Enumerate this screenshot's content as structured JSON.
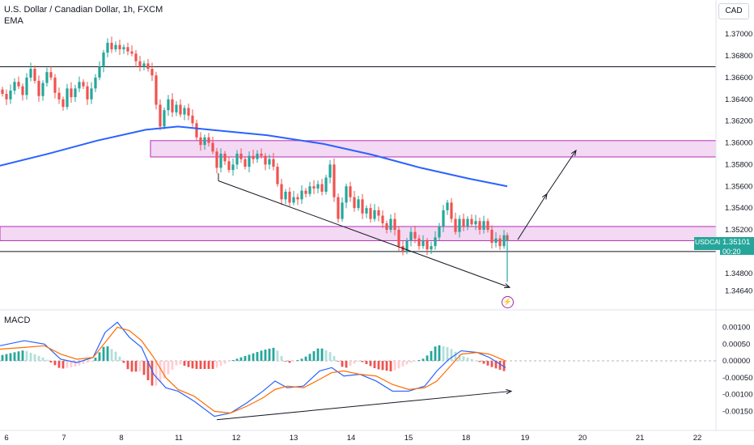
{
  "header": {
    "symbol_title": "U.S. Dollar / Canadian Dollar, 1h, FXCM",
    "indicator": "EMA",
    "currency_button": "CAD"
  },
  "price_tag": {
    "symbol": "USDCAD",
    "price": "1.35101",
    "countdown": "00:20"
  },
  "colors": {
    "up": "#26a69a",
    "down": "#ef5350",
    "ema": "#2962ff",
    "zone_fill": "#f3d9f3",
    "zone_border": "#b42fb4",
    "macd_line": "#2962ff",
    "signal_line": "#ff6d00"
  },
  "icons": {
    "event_marker": "lightning-icon"
  },
  "chart_data": [
    {
      "type": "candlestick",
      "title": "U.S. Dollar / Canadian Dollar, 1h, FXCM",
      "x_tick_labels": [
        "6",
        "7",
        "8",
        "11",
        "12",
        "13",
        "14",
        "15",
        "18",
        "19",
        "20",
        "21",
        "22"
      ],
      "y_ticks": [
        "1.37000",
        "1.36800",
        "1.36600",
        "1.36400",
        "1.36200",
        "1.36000",
        "1.35800",
        "1.35600",
        "1.35400",
        "1.35200",
        "1.35000",
        "1.34800",
        "1.34640"
      ],
      "ylim": [
        1.3456,
        1.3712
      ],
      "last_price": 1.35101,
      "resistance_line": 1.367,
      "support_line": 1.35,
      "zones": [
        {
          "from": 1.3587,
          "to": 1.3602
        },
        {
          "from": 1.351,
          "to": 1.3523
        }
      ],
      "ema_path": [
        [
          0,
          1.3579
        ],
        [
          60,
          1.359
        ],
        [
          120,
          1.3602
        ],
        [
          180,
          1.3612
        ],
        [
          220,
          1.3615
        ],
        [
          260,
          1.3612
        ],
        [
          330,
          1.3607
        ],
        [
          400,
          1.3599
        ],
        [
          460,
          1.3589
        ],
        [
          520,
          1.3577
        ],
        [
          580,
          1.3567
        ],
        [
          627,
          1.356
        ]
      ],
      "trendline": [
        [
          270,
          1.3565
        ],
        [
          630,
          1.3467
        ]
      ],
      "projection": [
        [
          640,
          1.3511
        ],
        [
          676,
          1.3553
        ],
        [
          712,
          1.3593
        ]
      ],
      "close_path": [
        [
          3,
          1.3645
        ],
        [
          8,
          1.364
        ],
        [
          13,
          1.3648
        ],
        [
          18,
          1.3656
        ],
        [
          23,
          1.3652
        ],
        [
          28,
          1.3644
        ],
        [
          33,
          1.366
        ],
        [
          38,
          1.3668
        ],
        [
          43,
          1.3657
        ],
        [
          48,
          1.3643
        ],
        [
          53,
          1.3655
        ],
        [
          58,
          1.3665
        ],
        [
          63,
          1.366
        ],
        [
          68,
          1.3646
        ],
        [
          73,
          1.364
        ],
        [
          78,
          1.3633
        ],
        [
          83,
          1.365
        ],
        [
          88,
          1.3642
        ],
        [
          93,
          1.365
        ],
        [
          98,
          1.3656
        ],
        [
          103,
          1.3652
        ],
        [
          108,
          1.364
        ],
        [
          113,
          1.365
        ],
        [
          118,
          1.366
        ],
        [
          123,
          1.367
        ],
        [
          128,
          1.3683
        ],
        [
          133,
          1.3692
        ],
        [
          138,
          1.3686
        ],
        [
          143,
          1.369
        ],
        [
          148,
          1.3686
        ],
        [
          153,
          1.3688
        ],
        [
          158,
          1.3684
        ],
        [
          163,
          1.3682
        ],
        [
          168,
          1.3675
        ],
        [
          173,
          1.367
        ],
        [
          178,
          1.3673
        ],
        [
          183,
          1.3668
        ],
        [
          188,
          1.3662
        ],
        [
          193,
          1.3635
        ],
        [
          198,
          1.3615
        ],
        [
          203,
          1.363
        ],
        [
          208,
          1.364
        ],
        [
          213,
          1.3628
        ],
        [
          218,
          1.3635
        ],
        [
          223,
          1.3626
        ],
        [
          228,
          1.3632
        ],
        [
          233,
          1.3625
        ],
        [
          238,
          1.3618
        ],
        [
          243,
          1.3605
        ],
        [
          248,
          1.3598
        ],
        [
          253,
          1.3605
        ],
        [
          258,
          1.36
        ],
        [
          263,
          1.3592
        ],
        [
          268,
          1.3577
        ],
        [
          273,
          1.359
        ],
        [
          278,
          1.3583
        ],
        [
          283,
          1.3575
        ],
        [
          288,
          1.358
        ],
        [
          293,
          1.359
        ],
        [
          298,
          1.3585
        ],
        [
          303,
          1.3578
        ],
        [
          308,
          1.3588
        ],
        [
          313,
          1.3585
        ],
        [
          318,
          1.359
        ],
        [
          323,
          1.3588
        ],
        [
          328,
          1.358
        ],
        [
          333,
          1.3585
        ],
        [
          338,
          1.3578
        ],
        [
          343,
          1.3562
        ],
        [
          348,
          1.3548
        ],
        [
          353,
          1.3555
        ],
        [
          358,
          1.3545
        ],
        [
          363,
          1.355
        ],
        [
          368,
          1.3548
        ],
        [
          373,
          1.3556
        ],
        [
          378,
          1.3553
        ],
        [
          383,
          1.356
        ],
        [
          388,
          1.3558
        ],
        [
          393,
          1.3562
        ],
        [
          398,
          1.3555
        ],
        [
          403,
          1.3568
        ],
        [
          408,
          1.358
        ],
        [
          413,
          1.355
        ],
        [
          418,
          1.353
        ],
        [
          423,
          1.3545
        ],
        [
          428,
          1.356
        ],
        [
          433,
          1.355
        ],
        [
          438,
          1.354
        ],
        [
          443,
          1.3548
        ],
        [
          448,
          1.3535
        ],
        [
          453,
          1.354
        ],
        [
          458,
          1.353
        ],
        [
          463,
          1.3538
        ],
        [
          468,
          1.3533
        ],
        [
          473,
          1.3526
        ],
        [
          478,
          1.352
        ],
        [
          483,
          1.353
        ],
        [
          488,
          1.352
        ],
        [
          493,
          1.3505
        ],
        [
          498,
          1.35
        ],
        [
          503,
          1.351
        ],
        [
          508,
          1.3518
        ],
        [
          513,
          1.3512
        ],
        [
          518,
          1.3505
        ],
        [
          523,
          1.351
        ],
        [
          528,
          1.3502
        ],
        [
          533,
          1.3505
        ],
        [
          538,
          1.3513
        ],
        [
          543,
          1.3523
        ],
        [
          548,
          1.3538
        ],
        [
          553,
          1.3545
        ],
        [
          558,
          1.353
        ],
        [
          563,
          1.3518
        ],
        [
          568,
          1.353
        ],
        [
          573,
          1.3523
        ],
        [
          578,
          1.353
        ],
        [
          583,
          1.3525
        ],
        [
          588,
          1.3528
        ],
        [
          593,
          1.352
        ],
        [
          598,
          1.3528
        ],
        [
          603,
          1.352
        ],
        [
          608,
          1.3508
        ],
        [
          613,
          1.3512
        ],
        [
          618,
          1.3505
        ],
        [
          623,
          1.3515
        ],
        [
          627,
          1.351
        ]
      ]
    },
    {
      "type": "line",
      "title": "MACD",
      "y_ticks": [
        "0.00100",
        "0.00050",
        "0.00000",
        "-0.00050",
        "-0.00100",
        "-0.00150"
      ],
      "ylim": [
        -0.0019,
        0.0013
      ],
      "series": [
        {
          "name": "MACD",
          "color": "#2962ff",
          "values_path": [
            [
              0,
              0.00045
            ],
            [
              30,
              0.0006
            ],
            [
              55,
              0.0005
            ],
            [
              75,
              5e-05
            ],
            [
              95,
              -5e-05
            ],
            [
              115,
              0.0001
            ],
            [
              130,
              0.00085
            ],
            [
              145,
              0.00115
            ],
            [
              160,
              0.0007
            ],
            [
              175,
              0.0004
            ],
            [
              190,
              -0.0004
            ],
            [
              205,
              -0.0008
            ],
            [
              220,
              -0.0009
            ],
            [
              240,
              -0.0012
            ],
            [
              265,
              -0.00165
            ],
            [
              285,
              -0.00155
            ],
            [
              305,
              -0.00125
            ],
            [
              325,
              -0.0009
            ],
            [
              340,
              -0.0006
            ],
            [
              355,
              -0.0008
            ],
            [
              375,
              -0.00075
            ],
            [
              395,
              -0.0003
            ],
            [
              410,
              -0.0002
            ],
            [
              425,
              -0.00045
            ],
            [
              445,
              -0.0004
            ],
            [
              465,
              -0.0006
            ],
            [
              485,
              -0.0009
            ],
            [
              505,
              -0.0009
            ],
            [
              525,
              -0.00075
            ],
            [
              540,
              -0.0003
            ],
            [
              555,
              5e-05
            ],
            [
              570,
              0.0003
            ],
            [
              590,
              0.00025
            ],
            [
              605,
              0.0001
            ],
            [
              625,
              -0.0002
            ]
          ]
        },
        {
          "name": "Signal",
          "color": "#ff6d00",
          "values_path": [
            [
              0,
              0.00035
            ],
            [
              30,
              0.0004
            ],
            [
              55,
              0.00045
            ],
            [
              75,
              0.0002
            ],
            [
              95,
              5e-05
            ],
            [
              115,
              0.0001
            ],
            [
              130,
              0.00055
            ],
            [
              145,
              0.001
            ],
            [
              160,
              0.0009
            ],
            [
              175,
              0.0006
            ],
            [
              190,
              0.0001
            ],
            [
              205,
              -0.0005
            ],
            [
              220,
              -0.00085
            ],
            [
              240,
              -0.00105
            ],
            [
              265,
              -0.0015
            ],
            [
              285,
              -0.00155
            ],
            [
              305,
              -0.00135
            ],
            [
              325,
              -0.0011
            ],
            [
              340,
              -0.00085
            ],
            [
              355,
              -0.00075
            ],
            [
              375,
              -0.0008
            ],
            [
              395,
              -0.00055
            ],
            [
              410,
              -0.00035
            ],
            [
              425,
              -0.0003
            ],
            [
              445,
              -0.0004
            ],
            [
              465,
              -0.00045
            ],
            [
              485,
              -0.0007
            ],
            [
              505,
              -0.00085
            ],
            [
              525,
              -0.0008
            ],
            [
              540,
              -0.0006
            ],
            [
              555,
              -0.0002
            ],
            [
              570,
              0.0002
            ],
            [
              590,
              0.00025
            ],
            [
              605,
              0.0002
            ],
            [
              625,
              0.0
            ]
          ]
        }
      ],
      "divergence_line": [
        [
          268,
          -0.00175
        ],
        [
          632,
          -0.0009
        ]
      ]
    }
  ]
}
